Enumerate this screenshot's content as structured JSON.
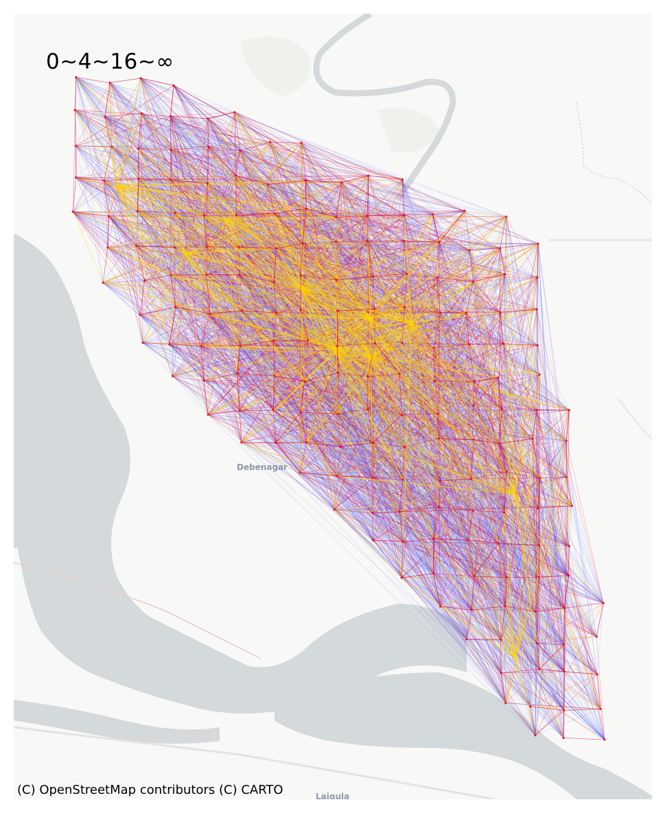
{
  "map": {
    "legend_title": "0~4~16~∞",
    "attribution": "(C) OpenStreetMap contributors (C) CARTO",
    "basemap": "CARTO light",
    "place_labels": [
      "Debenagar",
      "Laigula"
    ]
  },
  "colors": {
    "water": "#d4d9dc",
    "land": "#f8f8f7",
    "flow_low": "#4455ff",
    "flow_mid": "#e0103a",
    "flow_high": "#ffd400"
  },
  "flow_classes": [
    {
      "range": "0~4",
      "color": "#4455ff"
    },
    {
      "range": "4~16",
      "color": "#e0103a"
    },
    {
      "range": "16~∞",
      "color": "#ffd400"
    }
  ]
}
